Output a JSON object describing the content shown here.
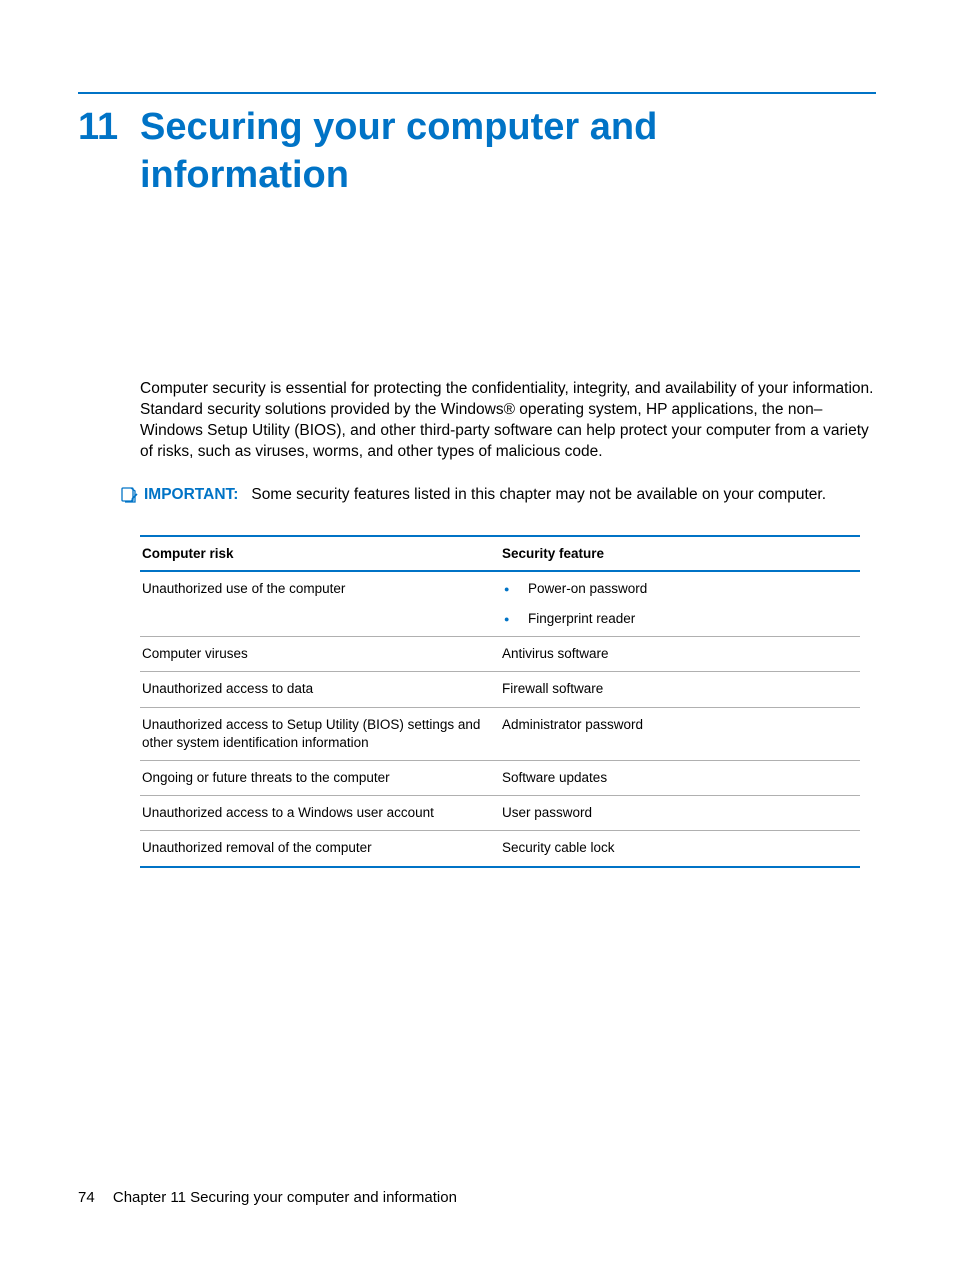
{
  "colors": {
    "accent": "#0073c6",
    "text": "#000000",
    "rule_gray": "#b0b0b0",
    "bullet": "#0073c6"
  },
  "chapter": {
    "number": "11",
    "title": "Securing your computer and information"
  },
  "intro_paragraph": "Computer security is essential for protecting the confidentiality, integrity, and availability of your information. Standard security solutions provided by the Windows® operating system, HP applications, the non–Windows Setup Utility (BIOS), and other third-party software can help protect your computer from a variety of risks, such as viruses, worms, and other types of malicious code.",
  "note": {
    "label": "IMPORTANT:",
    "text": "Some security features listed in this chapter may not be available on your computer."
  },
  "table": {
    "headers": {
      "risk": "Computer risk",
      "feature": "Security feature"
    },
    "rows": [
      {
        "risk": "Unauthorized use of the computer",
        "features": [
          "Power-on password",
          "Fingerprint reader"
        ],
        "list": true
      },
      {
        "risk": "Computer viruses",
        "features": [
          "Antivirus software"
        ],
        "list": false
      },
      {
        "risk": "Unauthorized access to data",
        "features": [
          "Firewall software"
        ],
        "list": false
      },
      {
        "risk": "Unauthorized access to Setup Utility (BIOS) settings and other system identification information",
        "features": [
          "Administrator password"
        ],
        "list": false
      },
      {
        "risk": "Ongoing or future threats to the computer",
        "features": [
          "Software updates"
        ],
        "list": false
      },
      {
        "risk": "Unauthorized access to a Windows user account",
        "features": [
          "User password"
        ],
        "list": false
      },
      {
        "risk": "Unauthorized removal of the computer",
        "features": [
          "Security cable lock"
        ],
        "list": false
      }
    ]
  },
  "footer": {
    "page_number": "74",
    "text": "Chapter 11   Securing your computer and information"
  }
}
